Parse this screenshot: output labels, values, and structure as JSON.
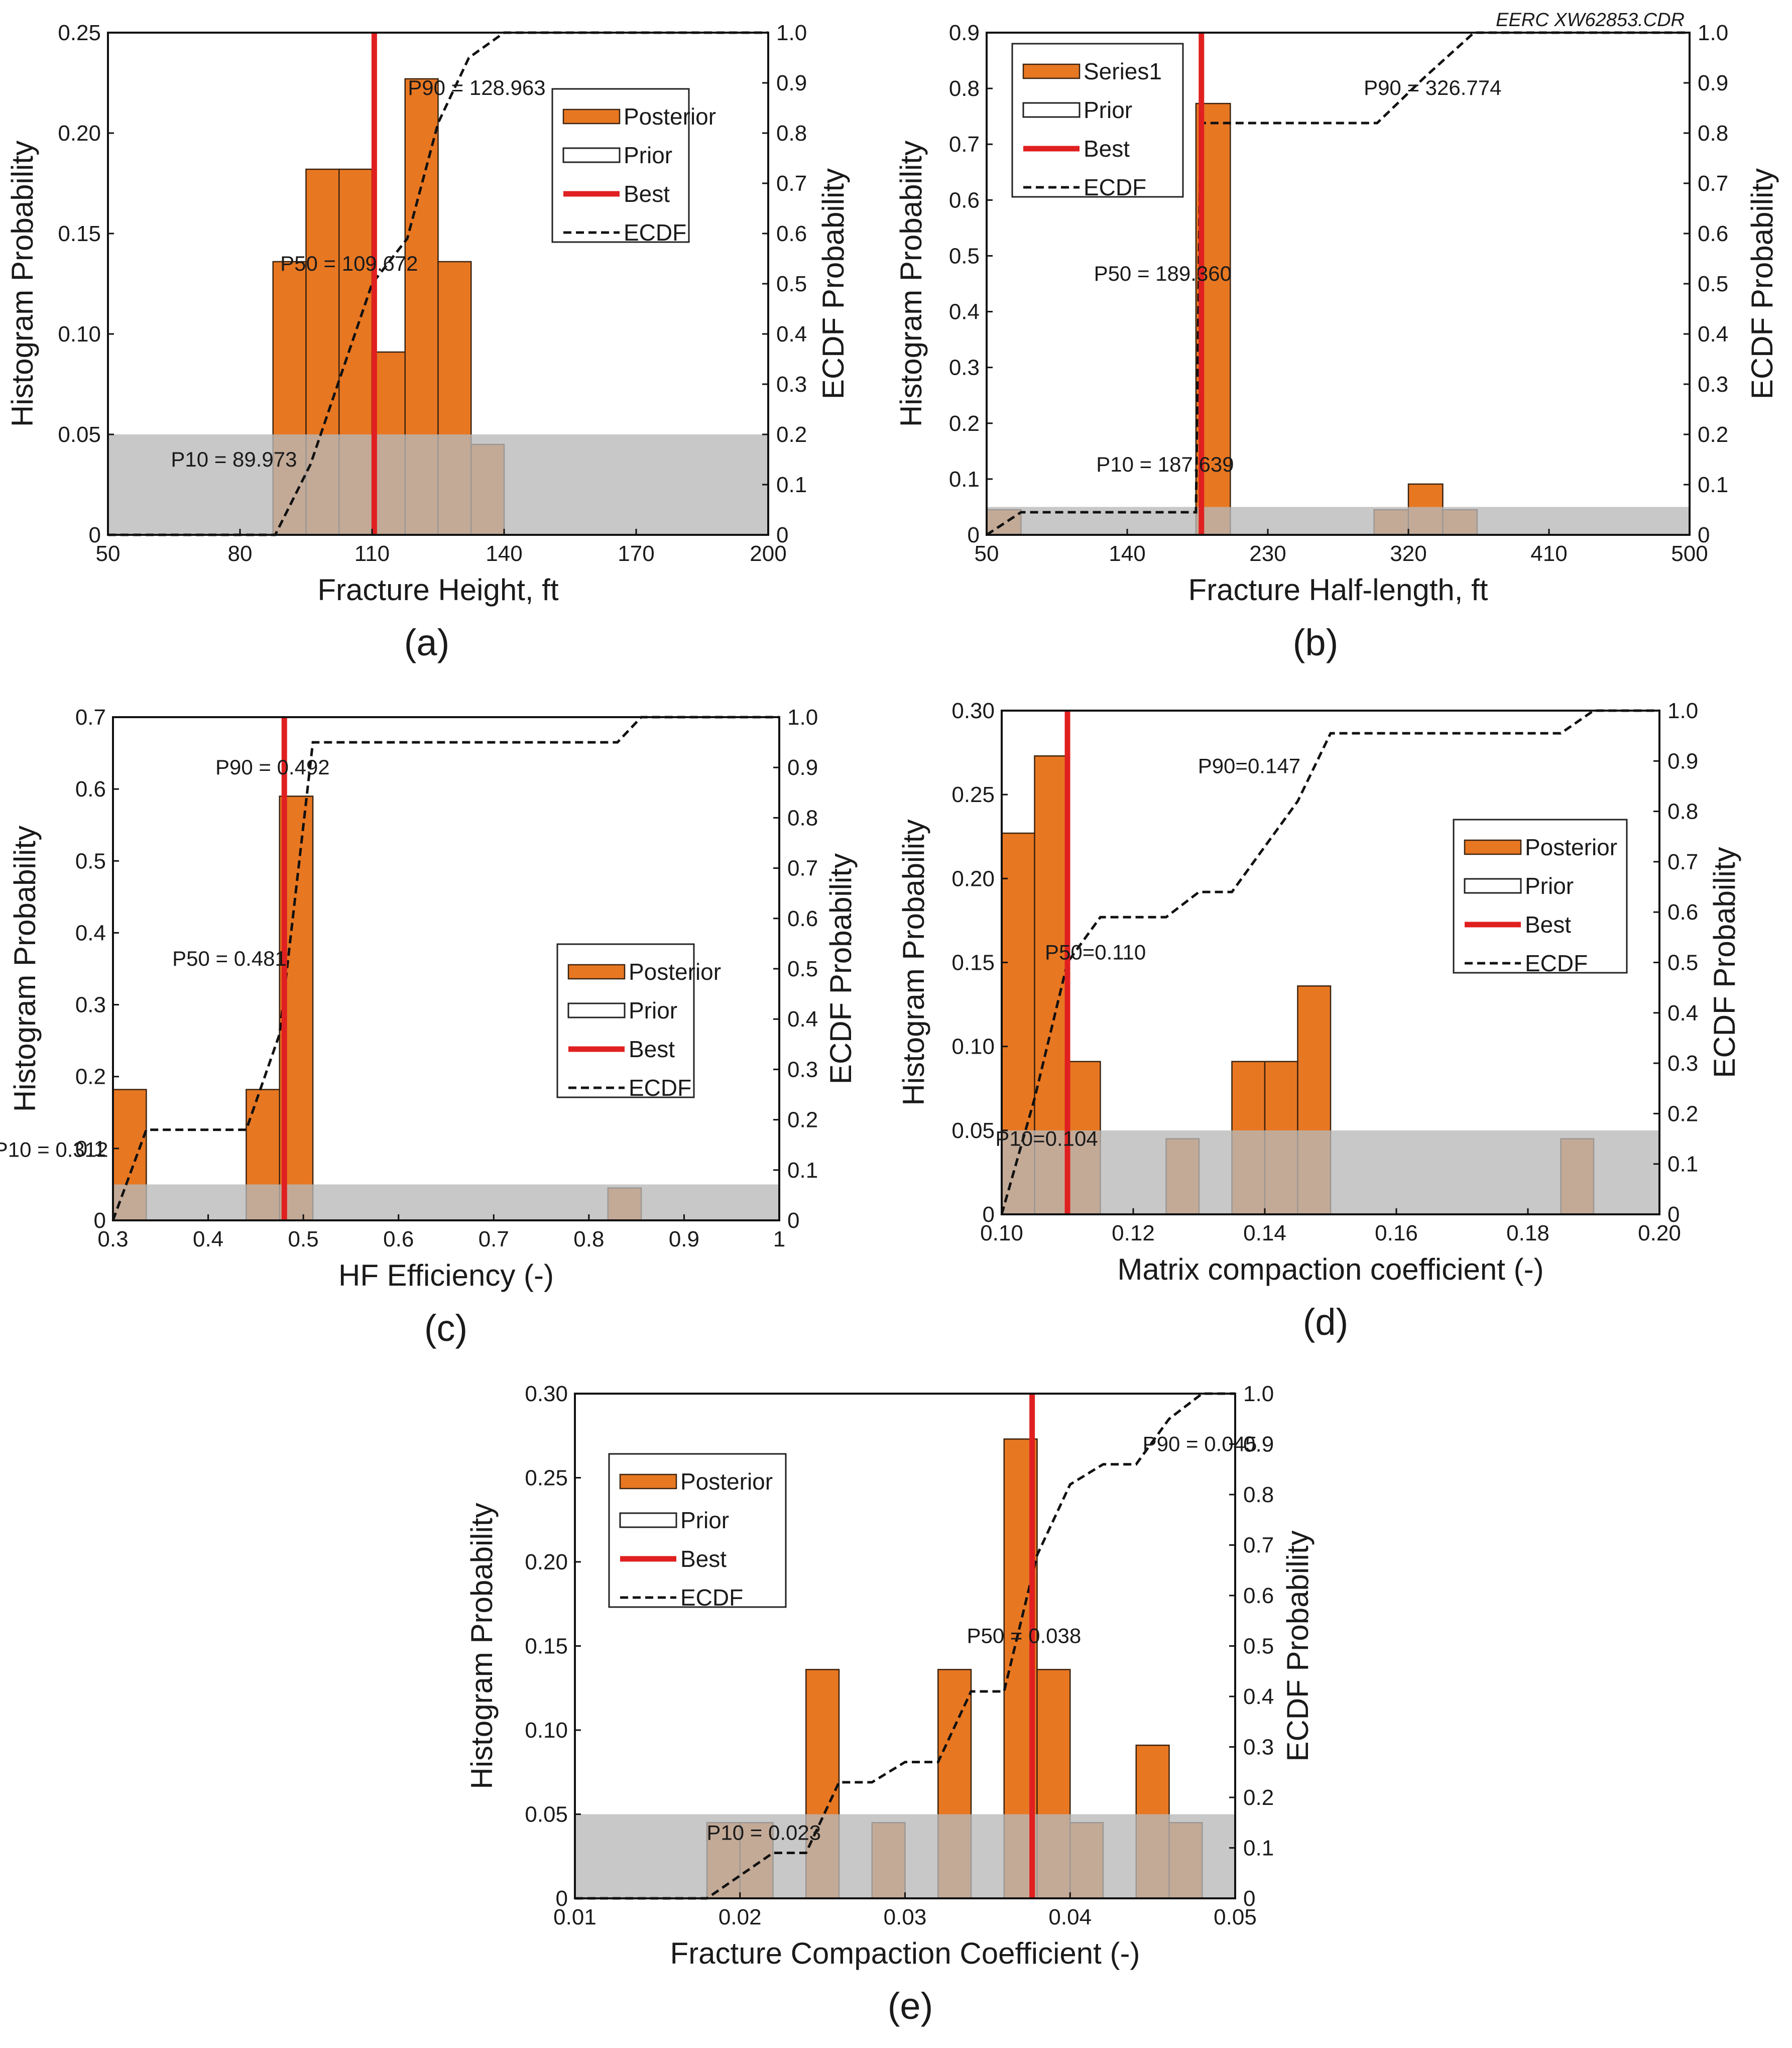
{
  "corner_label": "EERC XW62853.CDR",
  "colors": {
    "posterior": "#e87722",
    "bar_edge": "#3a2310",
    "best": "#e02020",
    "ecdf": "#111111",
    "band": "#b9b9b9"
  },
  "legend_icons": [
    "posterior-swatch",
    "prior-swatch",
    "best-line",
    "ecdf-dashed-line"
  ],
  "chart_data": [
    {
      "id": "a",
      "type": "bar",
      "panel_label": "(a)",
      "xlabel": "Fracture Height, ft",
      "ylabel": "Histogram Probability",
      "y2label": "ECDF Probability",
      "xlim": [
        50,
        200
      ],
      "ylim": [
        0,
        0.25
      ],
      "y2lim": [
        0,
        1.0
      ],
      "xticks": [
        "50",
        "80",
        "110",
        "140",
        "170",
        "200"
      ],
      "xtick_values": [
        50,
        80,
        110,
        140,
        170,
        200
      ],
      "yticks": [
        "0",
        "0.05",
        "0.10",
        "0.15",
        "0.20",
        "0.25"
      ],
      "ytick_values": [
        0,
        0.05,
        0.1,
        0.15,
        0.2,
        0.25
      ],
      "y2ticks": [
        "0",
        "0.1",
        "0.2",
        "0.3",
        "0.4",
        "0.5",
        "0.6",
        "0.7",
        "0.8",
        "0.9",
        "1.0"
      ],
      "bin_edges": [
        87.5,
        95,
        102.5,
        110,
        117.5,
        125,
        132.5,
        140
      ],
      "values": [
        0.136,
        0.182,
        0.182,
        0.091,
        0.227,
        0.136,
        0.045
      ],
      "band_value": 0.05,
      "best": 110.5,
      "ecdf": [
        [
          50,
          0
        ],
        [
          88,
          0
        ],
        [
          96,
          0.14
        ],
        [
          103,
          0.32
        ],
        [
          110,
          0.5
        ],
        [
          118,
          0.59
        ],
        [
          125,
          0.82
        ],
        [
          132,
          0.95
        ],
        [
          140,
          1.0
        ],
        [
          200,
          1.0
        ]
      ],
      "annotations": [
        {
          "text": "P90 = 128.963",
          "x": 128.963,
          "y2": 0.89
        },
        {
          "text": "P50 = 109.672",
          "x": 109.672,
          "y2": 0.54
        },
        {
          "text": "P10 = 89.973",
          "x": 89.973,
          "y2": 0.15
        }
      ],
      "legend": {
        "position": "top-right",
        "entries": [
          "Posterior",
          "Prior",
          "Best",
          "ECDF"
        ]
      }
    },
    {
      "id": "b",
      "type": "bar",
      "panel_label": "(b)",
      "xlabel": "Fracture Half-length, ft",
      "ylabel": "Histogram Probability",
      "y2label": "ECDF Probability",
      "xlim": [
        50,
        500
      ],
      "ylim": [
        0,
        0.9
      ],
      "y2lim": [
        0,
        1.0
      ],
      "xticks": [
        "50",
        "140",
        "230",
        "320",
        "410",
        "500"
      ],
      "xtick_values": [
        50,
        140,
        230,
        320,
        410,
        500
      ],
      "yticks": [
        "0",
        "0.1",
        "0.2",
        "0.3",
        "0.4",
        "0.5",
        "0.6",
        "0.7",
        "0.8",
        "0.9"
      ],
      "ytick_values": [
        0,
        0.1,
        0.2,
        0.3,
        0.4,
        0.5,
        0.6,
        0.7,
        0.8,
        0.9
      ],
      "y2ticks": [
        "0",
        "0.1",
        "0.2",
        "0.3",
        "0.4",
        "0.5",
        "0.6",
        "0.7",
        "0.8",
        "0.9",
        "1.0"
      ],
      "bin_edges": [
        50,
        72,
        184,
        206,
        298,
        320,
        342,
        364
      ],
      "values": [
        0.045,
        0,
        0.773,
        0,
        0.045,
        0.091,
        0.045
      ],
      "band_value": 0.05,
      "best": 187.5,
      "ecdf": [
        [
          50,
          0
        ],
        [
          72,
          0.045
        ],
        [
          184,
          0.045
        ],
        [
          187,
          0.82
        ],
        [
          300,
          0.82
        ],
        [
          330,
          0.91
        ],
        [
          362,
          1.0
        ],
        [
          500,
          1.0
        ]
      ],
      "annotations": [
        {
          "text": "P90 = 326.774",
          "x": 326.774,
          "y2": 0.89
        },
        {
          "text": "P50 = 189.360",
          "x": 189.36,
          "y2": 0.52
        },
        {
          "text": "P10 = 187.639",
          "x": 187.639,
          "y2": 0.14
        }
      ],
      "legend": {
        "position": "top-left",
        "entries": [
          "Series1",
          "Prior",
          "Best",
          "ECDF"
        ]
      }
    },
    {
      "id": "c",
      "type": "bar",
      "panel_label": "(c)",
      "xlabel": "HF Efficiency (-)",
      "ylabel": "Histogram Probability",
      "y2label": "ECDF Probability",
      "xlim": [
        0.3,
        1.0
      ],
      "ylim": [
        0,
        0.7
      ],
      "y2lim": [
        0,
        1.0
      ],
      "xticks": [
        "0.3",
        "0.4",
        "0.5",
        "0.6",
        "0.7",
        "0.8",
        "0.9",
        "1"
      ],
      "xtick_values": [
        0.3,
        0.4,
        0.5,
        0.6,
        0.7,
        0.8,
        0.9,
        1.0
      ],
      "yticks": [
        "0",
        "0.1",
        "0.2",
        "0.3",
        "0.4",
        "0.5",
        "0.6",
        "0.7"
      ],
      "ytick_values": [
        0,
        0.1,
        0.2,
        0.3,
        0.4,
        0.5,
        0.6,
        0.7
      ],
      "y2ticks": [
        "0",
        "0.1",
        "0.2",
        "0.3",
        "0.4",
        "0.5",
        "0.6",
        "0.7",
        "0.8",
        "0.9",
        "1.0"
      ],
      "bin_edges": [
        0.3,
        0.335,
        0.44,
        0.475,
        0.51,
        0.82,
        0.855
      ],
      "values": [
        0.182,
        0,
        0.182,
        0.59,
        0,
        0.045
      ],
      "band_value": 0.05,
      "best": 0.48,
      "ecdf": [
        [
          0.3,
          0
        ],
        [
          0.335,
          0.18
        ],
        [
          0.44,
          0.18
        ],
        [
          0.475,
          0.37
        ],
        [
          0.51,
          0.95
        ],
        [
          0.83,
          0.95
        ],
        [
          0.855,
          1.0
        ],
        [
          1.0,
          1.0
        ]
      ],
      "annotations": [
        {
          "text": "P90 = 0.492",
          "x": 0.492,
          "y2": 0.9
        },
        {
          "text": "P50 = 0.481",
          "x": 0.481,
          "y2": 0.52
        },
        {
          "text": "P10 = 0.312",
          "x": 0.312,
          "y2": 0.14
        }
      ],
      "legend": {
        "position": "center-right",
        "entries": [
          "Posterior",
          "Prior",
          "Best",
          "ECDF"
        ]
      }
    },
    {
      "id": "d",
      "type": "bar",
      "panel_label": "(d)",
      "xlabel": "Matrix compaction coefficient (-)",
      "ylabel": "Histogram Probability",
      "y2label": "ECDF Probability",
      "xlim": [
        0.1,
        0.2
      ],
      "ylim": [
        0,
        0.3
      ],
      "y2lim": [
        0,
        1.0
      ],
      "xticks": [
        "0.10",
        "0.12",
        "0.14",
        "0.16",
        "0.18",
        "0.20"
      ],
      "xtick_values": [
        0.1,
        0.12,
        0.14,
        0.16,
        0.18,
        0.2
      ],
      "yticks": [
        "0",
        "0.05",
        "0.10",
        "0.15",
        "0.20",
        "0.25",
        "0.30"
      ],
      "ytick_values": [
        0,
        0.05,
        0.1,
        0.15,
        0.2,
        0.25,
        0.3
      ],
      "y2ticks": [
        "0",
        "0.1",
        "0.2",
        "0.3",
        "0.4",
        "0.5",
        "0.6",
        "0.7",
        "0.8",
        "0.9",
        "1.0"
      ],
      "bin_edges": [
        0.1,
        0.105,
        0.11,
        0.115,
        0.12,
        0.125,
        0.13,
        0.135,
        0.14,
        0.145,
        0.15,
        0.155,
        0.16,
        0.165,
        0.17,
        0.175,
        0.18,
        0.185,
        0.19
      ],
      "values": [
        0.227,
        0.273,
        0.091,
        0,
        0,
        0.045,
        0,
        0.091,
        0.091,
        0.136,
        0,
        0,
        0,
        0,
        0,
        0,
        0,
        0.045
      ],
      "band_value": 0.05,
      "best": 0.11,
      "ecdf": [
        [
          0.1,
          0
        ],
        [
          0.105,
          0.23
        ],
        [
          0.11,
          0.5
        ],
        [
          0.115,
          0.59
        ],
        [
          0.125,
          0.59
        ],
        [
          0.13,
          0.64
        ],
        [
          0.135,
          0.64
        ],
        [
          0.14,
          0.73
        ],
        [
          0.145,
          0.82
        ],
        [
          0.15,
          0.955
        ],
        [
          0.185,
          0.955
        ],
        [
          0.19,
          1.0
        ],
        [
          0.2,
          1.0
        ]
      ],
      "annotations": [
        {
          "text": "P90=0.147",
          "x": 0.147,
          "y2": 0.89
        },
        {
          "text": "P50=0.110",
          "x": 0.11,
          "y2": 0.52
        },
        {
          "text": "P10=0.104",
          "x": 0.104,
          "y2": 0.15
        }
      ],
      "legend": {
        "position": "center-right",
        "entries": [
          "Posterior",
          "Prior",
          "Best",
          "ECDF"
        ]
      }
    },
    {
      "id": "e",
      "type": "bar",
      "panel_label": "(e)",
      "xlabel": "Fracture Compaction Coefficient (-)",
      "ylabel": "Histogram Probability",
      "y2label": "ECDF Probability",
      "xlim": [
        0.01,
        0.05
      ],
      "ylim": [
        0,
        0.3
      ],
      "y2lim": [
        0,
        1.0
      ],
      "xticks": [
        "0.01",
        "0.02",
        "0.03",
        "0.04",
        "0.05"
      ],
      "xtick_values": [
        0.01,
        0.02,
        0.03,
        0.04,
        0.05
      ],
      "yticks": [
        "0",
        "0.05",
        "0.10",
        "0.15",
        "0.20",
        "0.25",
        "0.30"
      ],
      "ytick_values": [
        0,
        0.05,
        0.1,
        0.15,
        0.2,
        0.25,
        0.3
      ],
      "y2ticks": [
        "0",
        "0.1",
        "0.2",
        "0.3",
        "0.4",
        "0.5",
        "0.6",
        "0.7",
        "0.8",
        "0.9",
        "1.0"
      ],
      "bin_edges": [
        0.018,
        0.02,
        0.022,
        0.024,
        0.026,
        0.028,
        0.03,
        0.032,
        0.034,
        0.036,
        0.038,
        0.04,
        0.042,
        0.044,
        0.046,
        0.048
      ],
      "values": [
        0.045,
        0.045,
        0,
        0.136,
        0,
        0.045,
        0,
        0.136,
        0,
        0.273,
        0.136,
        0.045,
        0,
        0.091,
        0.045
      ],
      "band_value": 0.05,
      "best": 0.0377,
      "ecdf": [
        [
          0.01,
          0
        ],
        [
          0.018,
          0
        ],
        [
          0.022,
          0.09
        ],
        [
          0.024,
          0.09
        ],
        [
          0.026,
          0.23
        ],
        [
          0.028,
          0.23
        ],
        [
          0.03,
          0.27
        ],
        [
          0.032,
          0.27
        ],
        [
          0.034,
          0.41
        ],
        [
          0.036,
          0.41
        ],
        [
          0.038,
          0.68
        ],
        [
          0.04,
          0.82
        ],
        [
          0.042,
          0.86
        ],
        [
          0.044,
          0.86
        ],
        [
          0.046,
          0.95
        ],
        [
          0.048,
          1.0
        ],
        [
          0.05,
          1.0
        ]
      ],
      "annotations": [
        {
          "text": "P90 = 0.045",
          "x": 0.045,
          "y2": 0.9
        },
        {
          "text": "P50 = 0.038",
          "x": 0.038,
          "y2": 0.52
        },
        {
          "text": "P10 = 0.023",
          "x": 0.023,
          "y2": 0.13
        }
      ],
      "legend": {
        "position": "top-left",
        "entries": [
          "Posterior",
          "Prior",
          "Best",
          "ECDF"
        ]
      }
    }
  ]
}
